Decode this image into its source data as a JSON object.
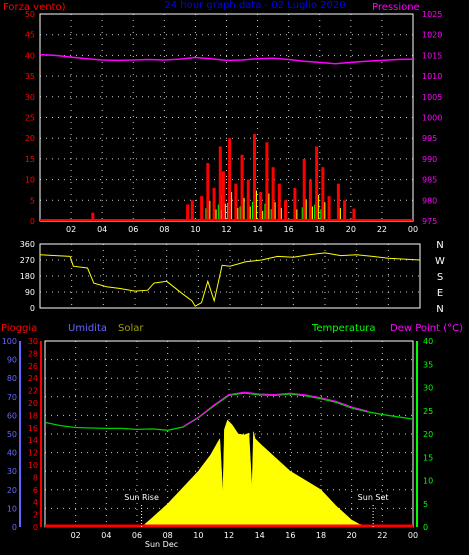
{
  "chart_data": [
    {
      "type": "line",
      "panel": "wind-pressure",
      "title": "24 hour graph data - 02 Luglio 2020",
      "label_left": "Forza vento)",
      "label_right": "Pressione",
      "x_ticks": [
        "02",
        "04",
        "06",
        "08",
        "10",
        "12",
        "14",
        "16",
        "18",
        "20",
        "22",
        "00"
      ],
      "y_left_ticks": [
        0,
        5,
        10,
        15,
        20,
        25,
        30,
        35,
        40,
        45,
        50
      ],
      "y_left_range": [
        0,
        50
      ],
      "y_right_ticks": [
        975,
        980,
        985,
        990,
        995,
        1000,
        1005,
        1010,
        1015,
        1020,
        1025
      ],
      "y_right_range": [
        975,
        1025
      ],
      "grid": true,
      "colors": {
        "left_axis": "#ff0000",
        "right_axis": "#ff00ff",
        "title": "#0000ff",
        "wind": "#ff0000",
        "gust": "#ffff00",
        "wind_avg": "#00ff00",
        "pressure": "#ff00ff"
      },
      "pressure": {
        "x": [
          0,
          1,
          2,
          3,
          4,
          5,
          6,
          7,
          8,
          9,
          10,
          11,
          12,
          13,
          14,
          15,
          16,
          17,
          18,
          19,
          20,
          21,
          22,
          23,
          24
        ],
        "y": [
          1015.2,
          1015.0,
          1014.6,
          1014.2,
          1013.9,
          1013.8,
          1013.9,
          1014.0,
          1013.9,
          1014.1,
          1014.5,
          1014.2,
          1013.8,
          1013.9,
          1014.2,
          1014.3,
          1014.0,
          1013.6,
          1013.3,
          1013.0,
          1013.3,
          1013.6,
          1013.8,
          1014.0,
          1014.1
        ]
      },
      "wind_gust": {
        "x": [
          3.4,
          9.5,
          9.8,
          10.4,
          10.8,
          11.2,
          11.6,
          11.8,
          12.2,
          12.6,
          13.0,
          13.4,
          13.8,
          14.2,
          14.6,
          15.0,
          15.4,
          15.8,
          16.4,
          17.0,
          17.4,
          17.8,
          18.2,
          18.6,
          19.2,
          19.6,
          20.2
        ],
        "y": [
          2,
          4,
          5,
          6,
          14,
          8,
          18,
          12,
          20,
          9,
          16,
          10,
          21,
          7,
          19,
          13,
          9,
          5,
          8,
          15,
          10,
          18,
          13,
          6,
          9,
          5,
          3
        ]
      }
    },
    {
      "type": "line",
      "panel": "wind-direction",
      "y_left_ticks": [
        0,
        90,
        180,
        270,
        360
      ],
      "y_range": [
        0,
        360
      ],
      "y_right_labels": [
        "N",
        "W",
        "S",
        "E",
        "N"
      ],
      "colors": {
        "direction": "#ffff00"
      },
      "series": {
        "x": [
          0,
          1,
          1.9,
          2.1,
          3,
          3.4,
          4.2,
          5,
          6,
          6.8,
          7.2,
          8,
          9,
          9.6,
          9.8,
          10.2,
          10.6,
          11,
          11.5,
          12,
          13,
          14,
          15,
          16,
          17,
          18,
          19,
          20,
          21,
          22,
          23,
          24
        ],
        "y": [
          300,
          295,
          290,
          235,
          225,
          140,
          120,
          110,
          95,
          100,
          140,
          150,
          80,
          40,
          10,
          30,
          150,
          40,
          240,
          235,
          260,
          270,
          290,
          285,
          300,
          310,
          295,
          300,
          290,
          280,
          275,
          270
        ]
      }
    },
    {
      "type": "area",
      "panel": "temp-hum-solar",
      "label_rain": "Pioggia",
      "label_humidity": "Umidita",
      "label_solar": "Solar",
      "label_temp": "Temperatura",
      "label_dew": "Dew Point (°C)",
      "x_ticks": [
        "02",
        "04",
        "06",
        "08",
        "10",
        "12",
        "14",
        "16",
        "18",
        "20",
        "22",
        "00"
      ],
      "x_label_overlay": "Sun Dec",
      "sun_rise_label": "Sun Rise",
      "sun_set_label": "Sun Set",
      "sun_rise_hour": 6.3,
      "sun_set_hour": 21.4,
      "hum_ticks": [
        0,
        10,
        20,
        30,
        40,
        50,
        60,
        70,
        80,
        90,
        100
      ],
      "hum_range": [
        0,
        100
      ],
      "rain_ticks": [
        0,
        2,
        4,
        6,
        8,
        10,
        12,
        14,
        16,
        18,
        20,
        22,
        24,
        26,
        28,
        30
      ],
      "rain_range": [
        0,
        30
      ],
      "temp_ticks": [
        0,
        5,
        10,
        15,
        20,
        25,
        30,
        35,
        40
      ],
      "temp_range": [
        0,
        40
      ],
      "grid": true,
      "colors": {
        "rain": "#ff0000",
        "humidity": "#6666ff",
        "solar": "#ffff00",
        "temperature": "#00cc00",
        "dew_point": "#ff00ff",
        "axis_hum": "#6666ff",
        "axis_rain": "#ff0000",
        "axis_temp": "#00ff00"
      },
      "temperature": {
        "x": [
          0,
          1,
          2,
          3,
          4,
          5,
          6,
          7,
          8,
          9,
          10,
          11,
          12,
          13,
          14,
          15,
          16,
          17,
          18,
          19,
          20,
          21,
          22,
          23,
          24
        ],
        "y": [
          22.5,
          21.8,
          21.4,
          21.3,
          21.2,
          21.2,
          21.0,
          21.1,
          20.8,
          21.5,
          23.5,
          26.0,
          28.3,
          28.8,
          28.4,
          28.3,
          28.6,
          28.2,
          27.6,
          26.8,
          25.6,
          24.8,
          24.2,
          23.7,
          23.2
        ]
      },
      "dew_point": {
        "x": [
          9,
          10,
          11,
          12,
          13,
          14,
          15,
          16,
          17,
          18,
          19,
          20,
          21
        ],
        "y": [
          21.6,
          23.6,
          26.2,
          28.5,
          29.0,
          28.6,
          28.5,
          28.8,
          28.4,
          27.8,
          27.0,
          25.8,
          25.0
        ]
      },
      "solar": {
        "x": [
          6.3,
          7,
          8,
          9,
          10,
          10.8,
          11.4,
          11.6,
          11.7,
          11.9,
          12.2,
          12.6,
          13.0,
          13.3,
          13.5,
          13.6,
          13.7,
          14,
          15,
          16,
          17,
          18,
          19,
          19.5,
          20,
          20.5,
          21.4
        ],
        "y": [
          0,
          2,
          5,
          8.5,
          12,
          15.5,
          19,
          7,
          21,
          23,
          22,
          20,
          19.8,
          20.2,
          8,
          20.5,
          19,
          18,
          15,
          12,
          10,
          8,
          4.5,
          3,
          1.5,
          0.6,
          0
        ]
      },
      "rain": {
        "x": [
          0,
          24
        ],
        "y": [
          0,
          0
        ]
      }
    }
  ]
}
